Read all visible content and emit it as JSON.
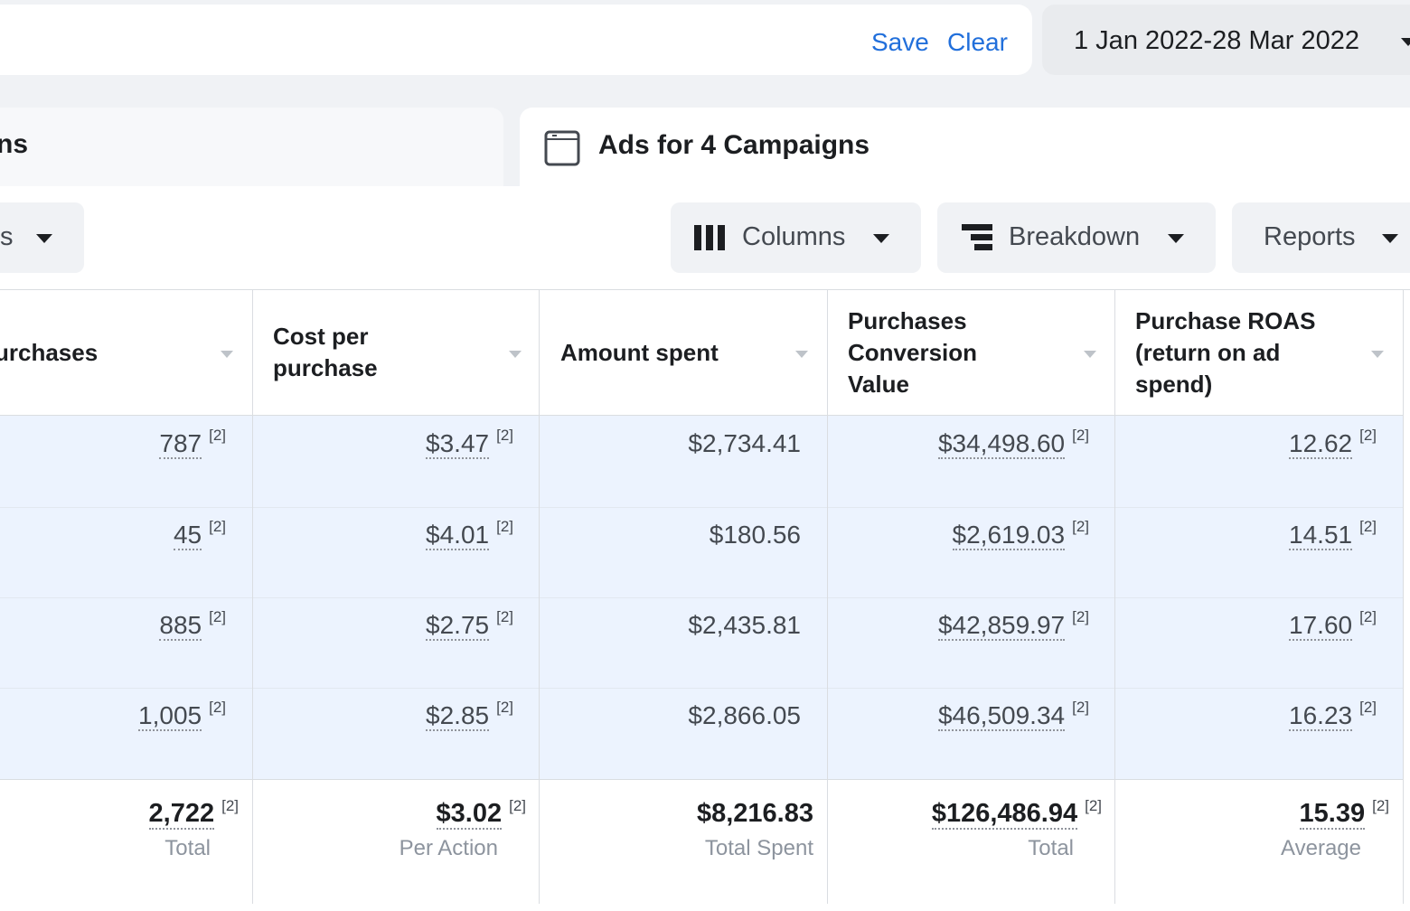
{
  "filter_bar": {
    "save_label": "Save",
    "clear_label": "Clear"
  },
  "date_range": {
    "value": "1 Jan 2022-28 Mar 2022"
  },
  "tabs": {
    "left_label": "ns",
    "right_label": "Ads for 4 Campaigns"
  },
  "toolbar": {
    "left_partial_label": "s",
    "columns_label": "Columns",
    "breakdown_label": "Breakdown",
    "reports_label": "Reports"
  },
  "table": {
    "headers": {
      "purchases": "urchases",
      "cost_per_purchase_1": "Cost per",
      "cost_per_purchase_2": "purchase",
      "amount_spent": "Amount spent",
      "conv_value_1": "Purchases",
      "conv_value_2": "Conversion",
      "conv_value_3": "Value",
      "roas_1": "Purchase ROAS",
      "roas_2": "(return on ad",
      "roas_3": "spend)"
    },
    "note_marker": "[2]",
    "rows": [
      {
        "purchases": "787",
        "cost": "$3.47",
        "spent": "$2,734.41",
        "value": "$34,498.60",
        "roas": "12.62"
      },
      {
        "purchases": "45",
        "cost": "$4.01",
        "spent": "$180.56",
        "value": "$2,619.03",
        "roas": "14.51"
      },
      {
        "purchases": "885",
        "cost": "$2.75",
        "spent": "$2,435.81",
        "value": "$42,859.97",
        "roas": "17.60"
      },
      {
        "purchases": "1,005",
        "cost": "$2.85",
        "spent": "$2,866.05",
        "value": "$46,509.34",
        "roas": "16.23"
      }
    ],
    "totals": {
      "purchases": {
        "value": "2,722",
        "label": "Total"
      },
      "cost": {
        "value": "$3.02",
        "label": "Per Action"
      },
      "spent": {
        "value": "$8,216.83",
        "label": "Total Spent"
      },
      "value": {
        "value": "$126,486.94",
        "label": "Total"
      },
      "roas": {
        "value": "15.39",
        "label": "Average"
      }
    }
  },
  "icons": {
    "campaign_tab": "browser-window-icon",
    "columns": "columns-icon",
    "breakdown": "breakdown-icon",
    "sort": "sort-caret-icon"
  },
  "colors": {
    "link": "#216fdb",
    "row_highlight": "#ecf3fe",
    "background": "#f0f2f5"
  }
}
